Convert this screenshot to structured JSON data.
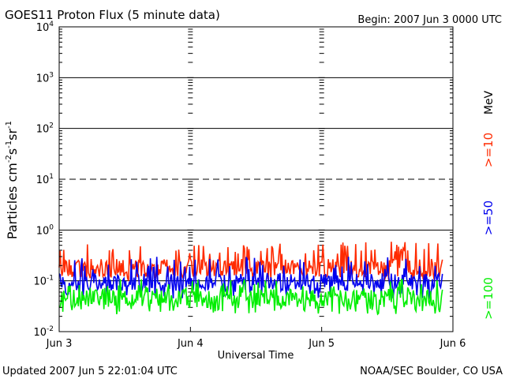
{
  "header": {
    "title": "GOES11 Proton Flux (5 minute data)",
    "begin": "Begin: 2007 Jun 3 0000 UTC"
  },
  "footer": {
    "updated": "Updated 2007 Jun  5 22:01:04 UTC",
    "source": "NOAA/SEC Boulder, CO USA"
  },
  "chart_data": {
    "type": "line",
    "title": "GOES11 Proton Flux (5 minute data)",
    "xlabel": "Universal Time",
    "ylabel_parts": {
      "base": "Particles cm",
      "e1": "-2",
      "s1": "s",
      "e2": "-1",
      "s2": "sr",
      "e3": "-1"
    },
    "y_scale": "log",
    "ylim": [
      0.01,
      10000
    ],
    "y_ticks": [
      {
        "value": 10000,
        "base": "10",
        "exp": "4"
      },
      {
        "value": 1000,
        "base": "10",
        "exp": "3"
      },
      {
        "value": 100,
        "base": "10",
        "exp": "2"
      },
      {
        "value": 10,
        "base": "10",
        "exp": "1"
      },
      {
        "value": 1,
        "base": "10",
        "exp": "0"
      },
      {
        "value": 0.1,
        "base": "10",
        "exp": "-1"
      },
      {
        "value": 0.01,
        "base": "10",
        "exp": "-2"
      }
    ],
    "x_ticks": [
      {
        "value": 0,
        "label": "Jun 3"
      },
      {
        "value": 1,
        "label": "Jun 4"
      },
      {
        "value": 2,
        "label": "Jun 5"
      },
      {
        "value": 3,
        "label": "Jun 6"
      }
    ],
    "xlim": [
      0,
      3
    ],
    "x_data_end": 2.92,
    "ref_lines": [
      {
        "value": 1000,
        "style": "solid"
      },
      {
        "value": 100,
        "style": "solid"
      },
      {
        "value": 10,
        "style": "dashed"
      },
      {
        "value": 1,
        "style": "solid"
      },
      {
        "value": 0.1,
        "style": "solid"
      }
    ],
    "legend_units": "MeV",
    "series": [
      {
        "name": ">=10",
        "color": "#ff2a00",
        "typical": 0.18,
        "min": 0.1,
        "max": 0.6
      },
      {
        "name": ">=50",
        "color": "#0000ee",
        "typical": 0.095,
        "min": 0.045,
        "max": 0.3
      },
      {
        "name": ">=100",
        "color": "#00ee00",
        "typical": 0.045,
        "min": 0.022,
        "max": 0.11
      }
    ]
  }
}
